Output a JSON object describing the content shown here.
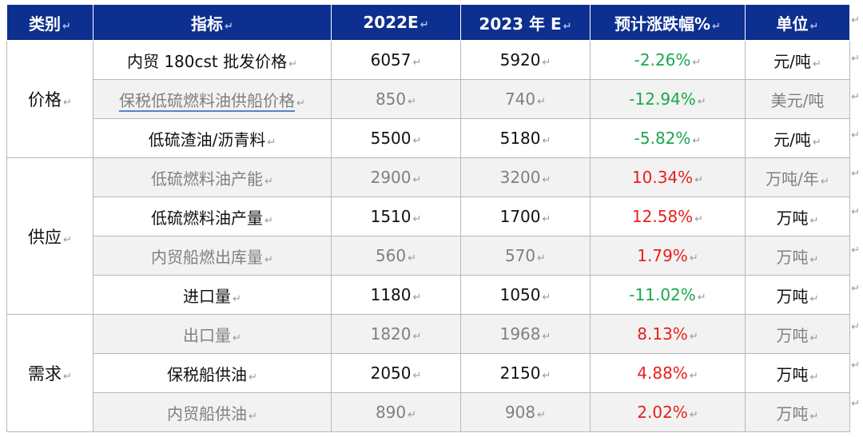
{
  "return_mark": "↵",
  "headers": {
    "category": "类别",
    "indicator": "指标",
    "y2022": "2022E",
    "y2023": "2023 年 E",
    "change": "预计涨跌幅%",
    "unit": "单位"
  },
  "groups": {
    "price": "价格",
    "supply": "供应",
    "demand": "需求"
  },
  "rows": [
    {
      "indicator": "内贸 180cst 批发价格",
      "y2022": "6057",
      "y2023": "5920",
      "change": "-2.26%",
      "unit": "元/吨"
    },
    {
      "indicator": "保税低硫燃料油供船价格",
      "y2022": "850",
      "y2023": "740",
      "change": "-12.94%",
      "unit": "美元/吨"
    },
    {
      "indicator": "低硫渣油/沥青料",
      "y2022": "5500",
      "y2023": "5180",
      "change": "-5.82%",
      "unit": "元/吨"
    },
    {
      "indicator": "低硫燃料油产能",
      "y2022": "2900",
      "y2023": "3200",
      "change": "10.34%",
      "unit": "万吨/年"
    },
    {
      "indicator": "低硫燃料油产量",
      "y2022": "1510",
      "y2023": "1700",
      "change": "12.58%",
      "unit": "万吨"
    },
    {
      "indicator": "内贸船燃出库量",
      "y2022": "560",
      "y2023": "570",
      "change": "1.79%",
      "unit": "万吨"
    },
    {
      "indicator": "进口量",
      "y2022": "1180",
      "y2023": "1050",
      "change": "-11.02%",
      "unit": "万吨"
    },
    {
      "indicator": "出口量",
      "y2022": "1820",
      "y2023": "1968",
      "change": "8.13%",
      "unit": "万吨"
    },
    {
      "indicator": "保税船供油",
      "y2022": "2050",
      "y2023": "2150",
      "change": "4.88%",
      "unit": "万吨"
    },
    {
      "indicator": "内贸船供油",
      "y2022": "890",
      "y2023": "908",
      "change": "2.02%",
      "unit": "万吨"
    }
  ],
  "colors": {
    "header_bg": "#0d2f8f",
    "negative": "#18a84a",
    "positive": "#e8201c",
    "shaded_row": "#f2f2f2"
  }
}
